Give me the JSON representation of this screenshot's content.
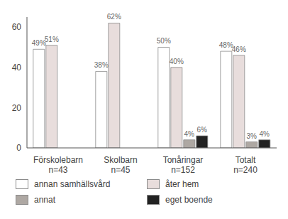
{
  "chart_data": {
    "type": "bar",
    "categories": [
      "Förskolebarn\nn=43",
      "Skolbarn\nn=45",
      "Tonåringar\nn=152",
      "Totalt\nn=240"
    ],
    "series": [
      {
        "name": "annan samhällsvård",
        "color": "#ffffff",
        "values": [
          49,
          38,
          50,
          48
        ],
        "value_labels": [
          "49%",
          "38%",
          "50%",
          "48%"
        ]
      },
      {
        "name": "åter hem",
        "color": "#e8dddc",
        "values": [
          51,
          62,
          40,
          46
        ],
        "value_labels": [
          "51%",
          "62%",
          "40%",
          "46%"
        ]
      },
      {
        "name": "annat",
        "color": "#aea8a3",
        "values": [
          null,
          null,
          4,
          3
        ],
        "value_labels": [
          null,
          null,
          "4%",
          "3%"
        ]
      },
      {
        "name": "eget boende",
        "color": "#222222",
        "values": [
          null,
          null,
          6,
          4
        ],
        "value_labels": [
          null,
          null,
          "6%",
          "4%"
        ]
      }
    ],
    "ylim": [
      0,
      65
    ],
    "yticks": [
      0,
      20,
      40,
      60
    ],
    "grid": false,
    "data_labels": true,
    "legend": "bottom"
  }
}
